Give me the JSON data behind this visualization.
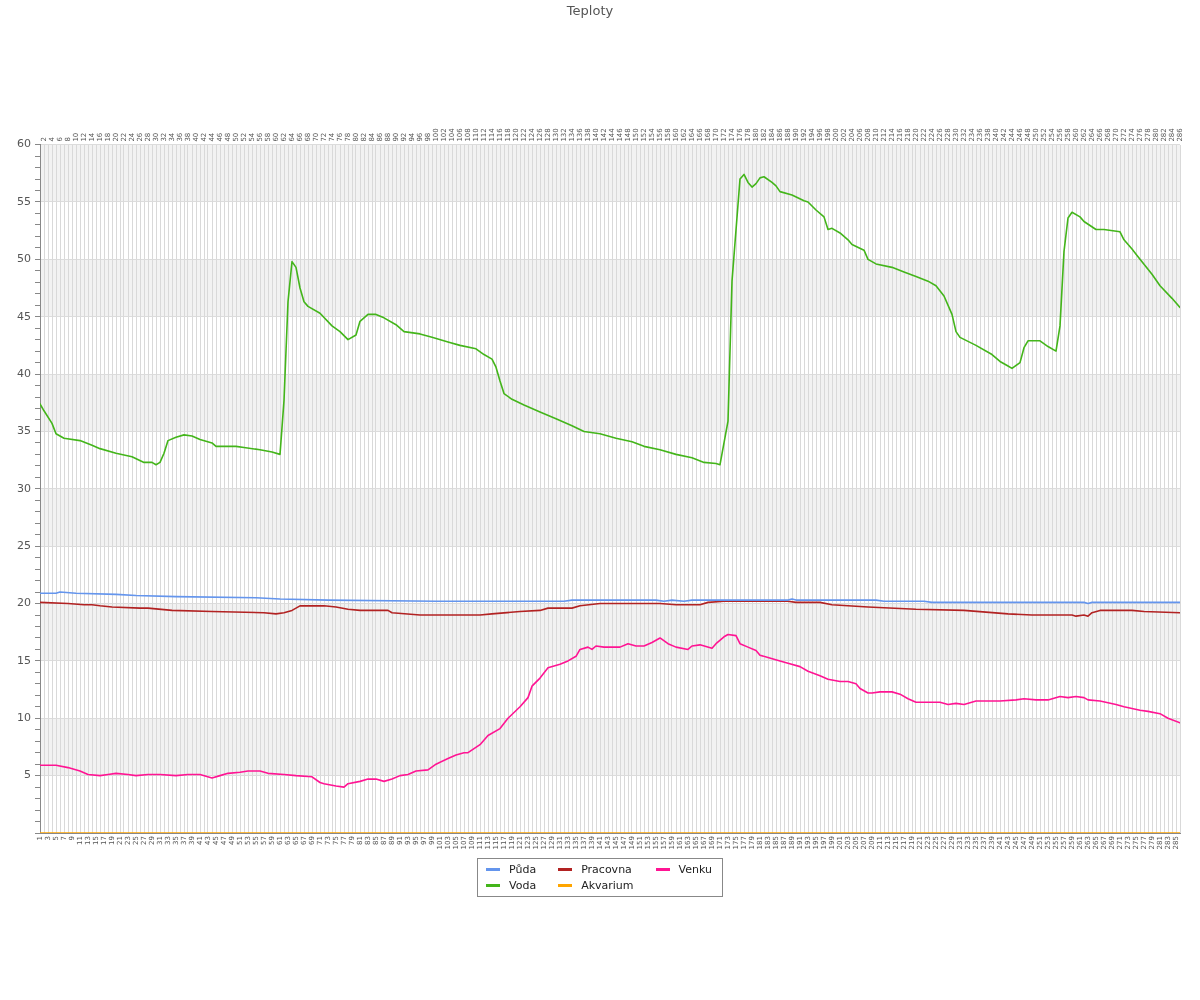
{
  "chart_data": {
    "type": "line",
    "title": "Teploty",
    "legend": "bottom",
    "grid": true,
    "marker": "none",
    "xlim": [
      1,
      286
    ],
    "xticks": [
      1,
      3,
      5,
      7,
      9,
      11,
      13,
      15,
      17,
      19,
      21,
      23,
      25,
      27,
      29,
      31,
      33,
      35,
      37,
      39,
      41,
      43,
      45,
      47,
      49,
      51,
      53,
      55,
      57,
      59,
      61,
      63,
      65,
      67,
      69,
      71,
      73,
      75,
      77,
      79,
      81,
      83,
      85,
      87,
      89,
      91,
      93,
      95,
      97,
      99,
      101,
      103,
      105,
      107,
      109,
      111,
      113,
      115,
      117,
      119,
      121,
      123,
      125,
      127,
      129,
      131,
      133,
      135,
      137,
      139,
      141,
      143,
      145,
      147,
      149,
      151,
      153,
      155,
      157,
      159,
      161,
      163,
      165,
      167,
      169,
      171,
      173,
      175,
      177,
      179,
      181,
      183,
      185,
      187,
      189,
      191,
      193,
      195,
      197,
      199,
      201,
      203,
      205,
      207,
      209,
      211,
      213,
      215,
      217,
      219,
      221,
      223,
      225,
      227,
      229,
      231,
      233,
      235,
      237,
      239,
      241,
      243,
      245,
      247,
      249,
      251,
      253,
      255,
      257,
      259,
      261,
      263,
      265,
      267,
      269,
      271,
      273,
      275,
      277,
      279,
      281,
      283,
      285
    ],
    "x2lim": [
      1,
      286
    ],
    "x2ticks": [
      2,
      4,
      6,
      8,
      10,
      12,
      14,
      16,
      18,
      20,
      22,
      24,
      26,
      28,
      30,
      32,
      34,
      36,
      38,
      40,
      42,
      44,
      46,
      48,
      50,
      52,
      54,
      56,
      58,
      60,
      62,
      64,
      66,
      68,
      70,
      72,
      74,
      76,
      78,
      80,
      82,
      84,
      86,
      88,
      90,
      92,
      94,
      96,
      98,
      100,
      102,
      104,
      106,
      108,
      110,
      112,
      114,
      116,
      118,
      120,
      122,
      124,
      126,
      128,
      130,
      132,
      134,
      136,
      138,
      140,
      142,
      144,
      146,
      148,
      150,
      152,
      154,
      156,
      158,
      160,
      162,
      164,
      166,
      168,
      170,
      172,
      174,
      176,
      178,
      180,
      182,
      184,
      186,
      188,
      190,
      192,
      194,
      196,
      198,
      200,
      202,
      204,
      206,
      208,
      210,
      212,
      214,
      216,
      218,
      220,
      222,
      224,
      226,
      228,
      230,
      232,
      234,
      236,
      238,
      240,
      242,
      244,
      246,
      248,
      250,
      252,
      254,
      256,
      258,
      260,
      262,
      264,
      266,
      268,
      270,
      272,
      274,
      276,
      278,
      280,
      282,
      284,
      286
    ],
    "ylim": [
      0,
      60
    ],
    "yticks": [
      {
        "value": 0,
        "label": null
      },
      {
        "value": 1,
        "label": null
      },
      {
        "value": 2,
        "label": null
      },
      {
        "value": 3,
        "label": null
      },
      {
        "value": 4,
        "label": null
      },
      5,
      {
        "value": 6,
        "label": null
      },
      {
        "value": 7,
        "label": null
      },
      {
        "value": 8,
        "label": null
      },
      {
        "value": 9,
        "label": null
      },
      10,
      {
        "value": 11,
        "label": null
      },
      {
        "value": 12,
        "label": null
      },
      {
        "value": 13,
        "label": null
      },
      {
        "value": 14,
        "label": null
      },
      15,
      {
        "value": 16,
        "label": null
      },
      {
        "value": 17,
        "label": null
      },
      {
        "value": 18,
        "label": null
      },
      {
        "value": 19,
        "label": null
      },
      20,
      {
        "value": 21,
        "label": null
      },
      {
        "value": 22,
        "label": null
      },
      {
        "value": 23,
        "label": null
      },
      {
        "value": 24,
        "label": null
      },
      25,
      {
        "value": 26,
        "label": null
      },
      {
        "value": 27,
        "label": null
      },
      {
        "value": 28,
        "label": null
      },
      {
        "value": 29,
        "label": null
      },
      30,
      {
        "value": 31,
        "label": null
      },
      {
        "value": 32,
        "label": null
      },
      {
        "value": 33,
        "label": null
      },
      {
        "value": 34,
        "label": null
      },
      35,
      {
        "value": 36,
        "label": null
      },
      {
        "value": 37,
        "label": null
      },
      {
        "value": 38,
        "label": null
      },
      {
        "value": 39,
        "label": null
      },
      40,
      {
        "value": 41,
        "label": null
      },
      {
        "value": 42,
        "label": null
      },
      {
        "value": 43,
        "label": null
      },
      {
        "value": 44,
        "label": null
      },
      45,
      {
        "value": 46,
        "label": null
      },
      {
        "value": 47,
        "label": null
      },
      {
        "value": 48,
        "label": null
      },
      {
        "value": 49,
        "label": null
      },
      50,
      {
        "value": 51,
        "label": null
      },
      {
        "value": 52,
        "label": null
      },
      {
        "value": 53,
        "label": null
      },
      {
        "value": 54,
        "label": null
      },
      55,
      {
        "value": 56,
        "label": null
      },
      {
        "value": 57,
        "label": null
      },
      {
        "value": 58,
        "label": null
      },
      {
        "value": 59,
        "label": null
      },
      60
    ],
    "series": [
      {
        "name": "Půda",
        "color": "#6495ed",
        "x": [
          1,
          5,
          6,
          10,
          20,
          25,
          35,
          55,
          61,
          73,
          100,
          132,
          134,
          155,
          157,
          159,
          162,
          164,
          188,
          189,
          190,
          210,
          212,
          222,
          224,
          262,
          263,
          264,
          286
        ],
        "values": [
          20.9,
          20.9,
          21.0,
          20.9,
          20.8,
          20.7,
          20.6,
          20.5,
          20.4,
          20.3,
          20.2,
          20.2,
          20.3,
          20.3,
          20.2,
          20.3,
          20.2,
          20.3,
          20.3,
          20.4,
          20.3,
          20.3,
          20.2,
          20.2,
          20.1,
          20.1,
          20.0,
          20.1,
          20.1
        ]
      },
      {
        "name": "Voda",
        "color": "#43b51a",
        "x": [
          1,
          2,
          4,
          5,
          7,
          11,
          14,
          16,
          20,
          24,
          27,
          29,
          30,
          31,
          32,
          33,
          35,
          37,
          39,
          41,
          44,
          45,
          47,
          50,
          52,
          56,
          59,
          61,
          62,
          63,
          64,
          65,
          66,
          67,
          68,
          71,
          74,
          76,
          78,
          80,
          81,
          83,
          85,
          87,
          90,
          92,
          96,
          99,
          103,
          106,
          110,
          112,
          114,
          115,
          116,
          117,
          119,
          122,
          126,
          130,
          134,
          137,
          141,
          145,
          149,
          152,
          156,
          160,
          164,
          167,
          170,
          171,
          173,
          174,
          176,
          177,
          178,
          179,
          180,
          181,
          182,
          184,
          185,
          186,
          189,
          192,
          193,
          195,
          197,
          198,
          199,
          201,
          203,
          204,
          207,
          208,
          210,
          214,
          217,
          220,
          223,
          225,
          227,
          229,
          230,
          231,
          235,
          239,
          241,
          243,
          244,
          246,
          247,
          248,
          251,
          253,
          255,
          256,
          257,
          258,
          259,
          261,
          262,
          265,
          267,
          271,
          272,
          274,
          276,
          279,
          281,
          284,
          286
        ],
        "values": [
          37.4,
          36.8,
          35.7,
          34.8,
          34.4,
          34.2,
          33.8,
          33.5,
          33.1,
          32.8,
          32.3,
          32.3,
          32.1,
          32.3,
          33.1,
          34.2,
          34.5,
          34.7,
          34.6,
          34.3,
          34.0,
          33.7,
          33.7,
          33.7,
          33.6,
          33.4,
          33.2,
          33.0,
          37.7,
          46.3,
          49.8,
          49.3,
          47.5,
          46.3,
          45.9,
          45.3,
          44.2,
          43.7,
          43.0,
          43.4,
          44.6,
          45.2,
          45.2,
          44.9,
          44.3,
          43.7,
          43.5,
          43.2,
          42.8,
          42.5,
          42.2,
          41.7,
          41.3,
          40.6,
          39.4,
          38.3,
          37.8,
          37.3,
          36.7,
          36.1,
          35.5,
          35.0,
          34.8,
          34.4,
          34.1,
          33.7,
          33.4,
          33.0,
          32.7,
          32.3,
          32.2,
          32.1,
          35.9,
          48.1,
          57.0,
          57.4,
          56.7,
          56.3,
          56.6,
          57.1,
          57.2,
          56.7,
          56.4,
          55.9,
          55.6,
          55.1,
          55.0,
          54.3,
          53.7,
          52.6,
          52.7,
          52.3,
          51.7,
          51.3,
          50.8,
          50.0,
          49.6,
          49.3,
          48.9,
          48.5,
          48.1,
          47.7,
          46.8,
          45.2,
          43.7,
          43.2,
          42.5,
          41.7,
          41.1,
          40.7,
          40.5,
          41.0,
          42.3,
          42.9,
          42.9,
          42.4,
          42.0,
          44.2,
          50.7,
          53.6,
          54.1,
          53.7,
          53.3,
          52.6,
          52.6,
          52.4,
          51.7,
          50.9,
          50.0,
          48.7,
          47.7,
          46.6,
          45.8
        ]
      },
      {
        "name": "Pracovna",
        "color": "#b22222",
        "x": [
          1,
          8,
          12,
          14,
          16,
          19,
          26,
          28,
          34,
          44,
          57,
          60,
          62,
          64,
          66,
          68,
          72,
          75,
          78,
          81,
          88,
          89,
          96,
          111,
          114,
          121,
          126,
          128,
          134,
          136,
          141,
          156,
          160,
          166,
          168,
          172,
          188,
          190,
          196,
          199,
          208,
          220,
          232,
          243,
          249,
          259,
          260,
          262,
          263,
          264,
          266,
          274,
          277,
          286
        ],
        "values": [
          20.1,
          20.0,
          19.9,
          19.9,
          19.8,
          19.7,
          19.6,
          19.6,
          19.4,
          19.3,
          19.2,
          19.1,
          19.2,
          19.4,
          19.8,
          19.8,
          19.8,
          19.7,
          19.5,
          19.4,
          19.4,
          19.2,
          19.0,
          19.0,
          19.1,
          19.3,
          19.4,
          19.6,
          19.6,
          19.8,
          20.0,
          20.0,
          19.9,
          19.9,
          20.1,
          20.2,
          20.2,
          20.1,
          20.1,
          19.9,
          19.7,
          19.5,
          19.4,
          19.1,
          19.0,
          19.0,
          18.9,
          19.0,
          18.9,
          19.2,
          19.4,
          19.4,
          19.3,
          19.2
        ]
      },
      {
        "name": "Akvarium",
        "color": "#ffa500",
        "x": [
          1,
          286
        ],
        "values": [
          0,
          0
        ]
      },
      {
        "name": "Venku",
        "color": "#ff1493",
        "x": [
          1,
          5,
          8,
          11,
          13,
          16,
          18,
          20,
          23,
          25,
          28,
          31,
          35,
          38,
          41,
          44,
          46,
          48,
          51,
          53,
          56,
          58,
          62,
          65,
          69,
          71,
          72,
          75,
          77,
          78,
          81,
          83,
          85,
          87,
          89,
          91,
          93,
          95,
          98,
          100,
          103,
          105,
          107,
          108,
          111,
          113,
          116,
          118,
          121,
          123,
          124,
          126,
          128,
          131,
          133,
          135,
          136,
          138,
          139,
          140,
          142,
          146,
          148,
          150,
          152,
          154,
          156,
          158,
          160,
          163,
          164,
          166,
          169,
          170,
          172,
          173,
          175,
          176,
          178,
          180,
          181,
          183,
          186,
          188,
          191,
          193,
          196,
          198,
          201,
          203,
          205,
          206,
          208,
          209,
          211,
          214,
          216,
          218,
          220,
          223,
          226,
          228,
          230,
          232,
          235,
          238,
          241,
          245,
          247,
          250,
          253,
          256,
          258,
          260,
          262,
          263,
          266,
          270,
          272,
          276,
          278,
          281,
          283,
          286
        ],
        "values": [
          5.9,
          5.9,
          5.7,
          5.4,
          5.1,
          5.0,
          5.1,
          5.2,
          5.1,
          5.0,
          5.1,
          5.1,
          5.0,
          5.1,
          5.1,
          4.8,
          5.0,
          5.2,
          5.3,
          5.4,
          5.4,
          5.2,
          5.1,
          5.0,
          4.9,
          4.4,
          4.3,
          4.1,
          4.0,
          4.3,
          4.5,
          4.7,
          4.7,
          4.5,
          4.7,
          5.0,
          5.1,
          5.4,
          5.5,
          6.0,
          6.5,
          6.8,
          7.0,
          7.0,
          7.7,
          8.5,
          9.1,
          10.0,
          11.0,
          11.8,
          12.8,
          13.5,
          14.4,
          14.7,
          15.0,
          15.4,
          16.0,
          16.2,
          16.0,
          16.3,
          16.2,
          16.2,
          16.5,
          16.3,
          16.3,
          16.6,
          17.0,
          16.5,
          16.2,
          16.0,
          16.3,
          16.4,
          16.1,
          16.5,
          17.1,
          17.3,
          17.2,
          16.5,
          16.2,
          15.9,
          15.5,
          15.3,
          15.0,
          14.8,
          14.5,
          14.1,
          13.7,
          13.4,
          13.2,
          13.2,
          13.0,
          12.6,
          12.2,
          12.2,
          12.3,
          12.3,
          12.1,
          11.7,
          11.4,
          11.4,
          11.4,
          11.2,
          11.3,
          11.2,
          11.5,
          11.5,
          11.5,
          11.6,
          11.7,
          11.6,
          11.6,
          11.9,
          11.8,
          11.9,
          11.8,
          11.6,
          11.5,
          11.2,
          11.0,
          10.7,
          10.6,
          10.4,
          10.0,
          9.6
        ]
      }
    ]
  }
}
